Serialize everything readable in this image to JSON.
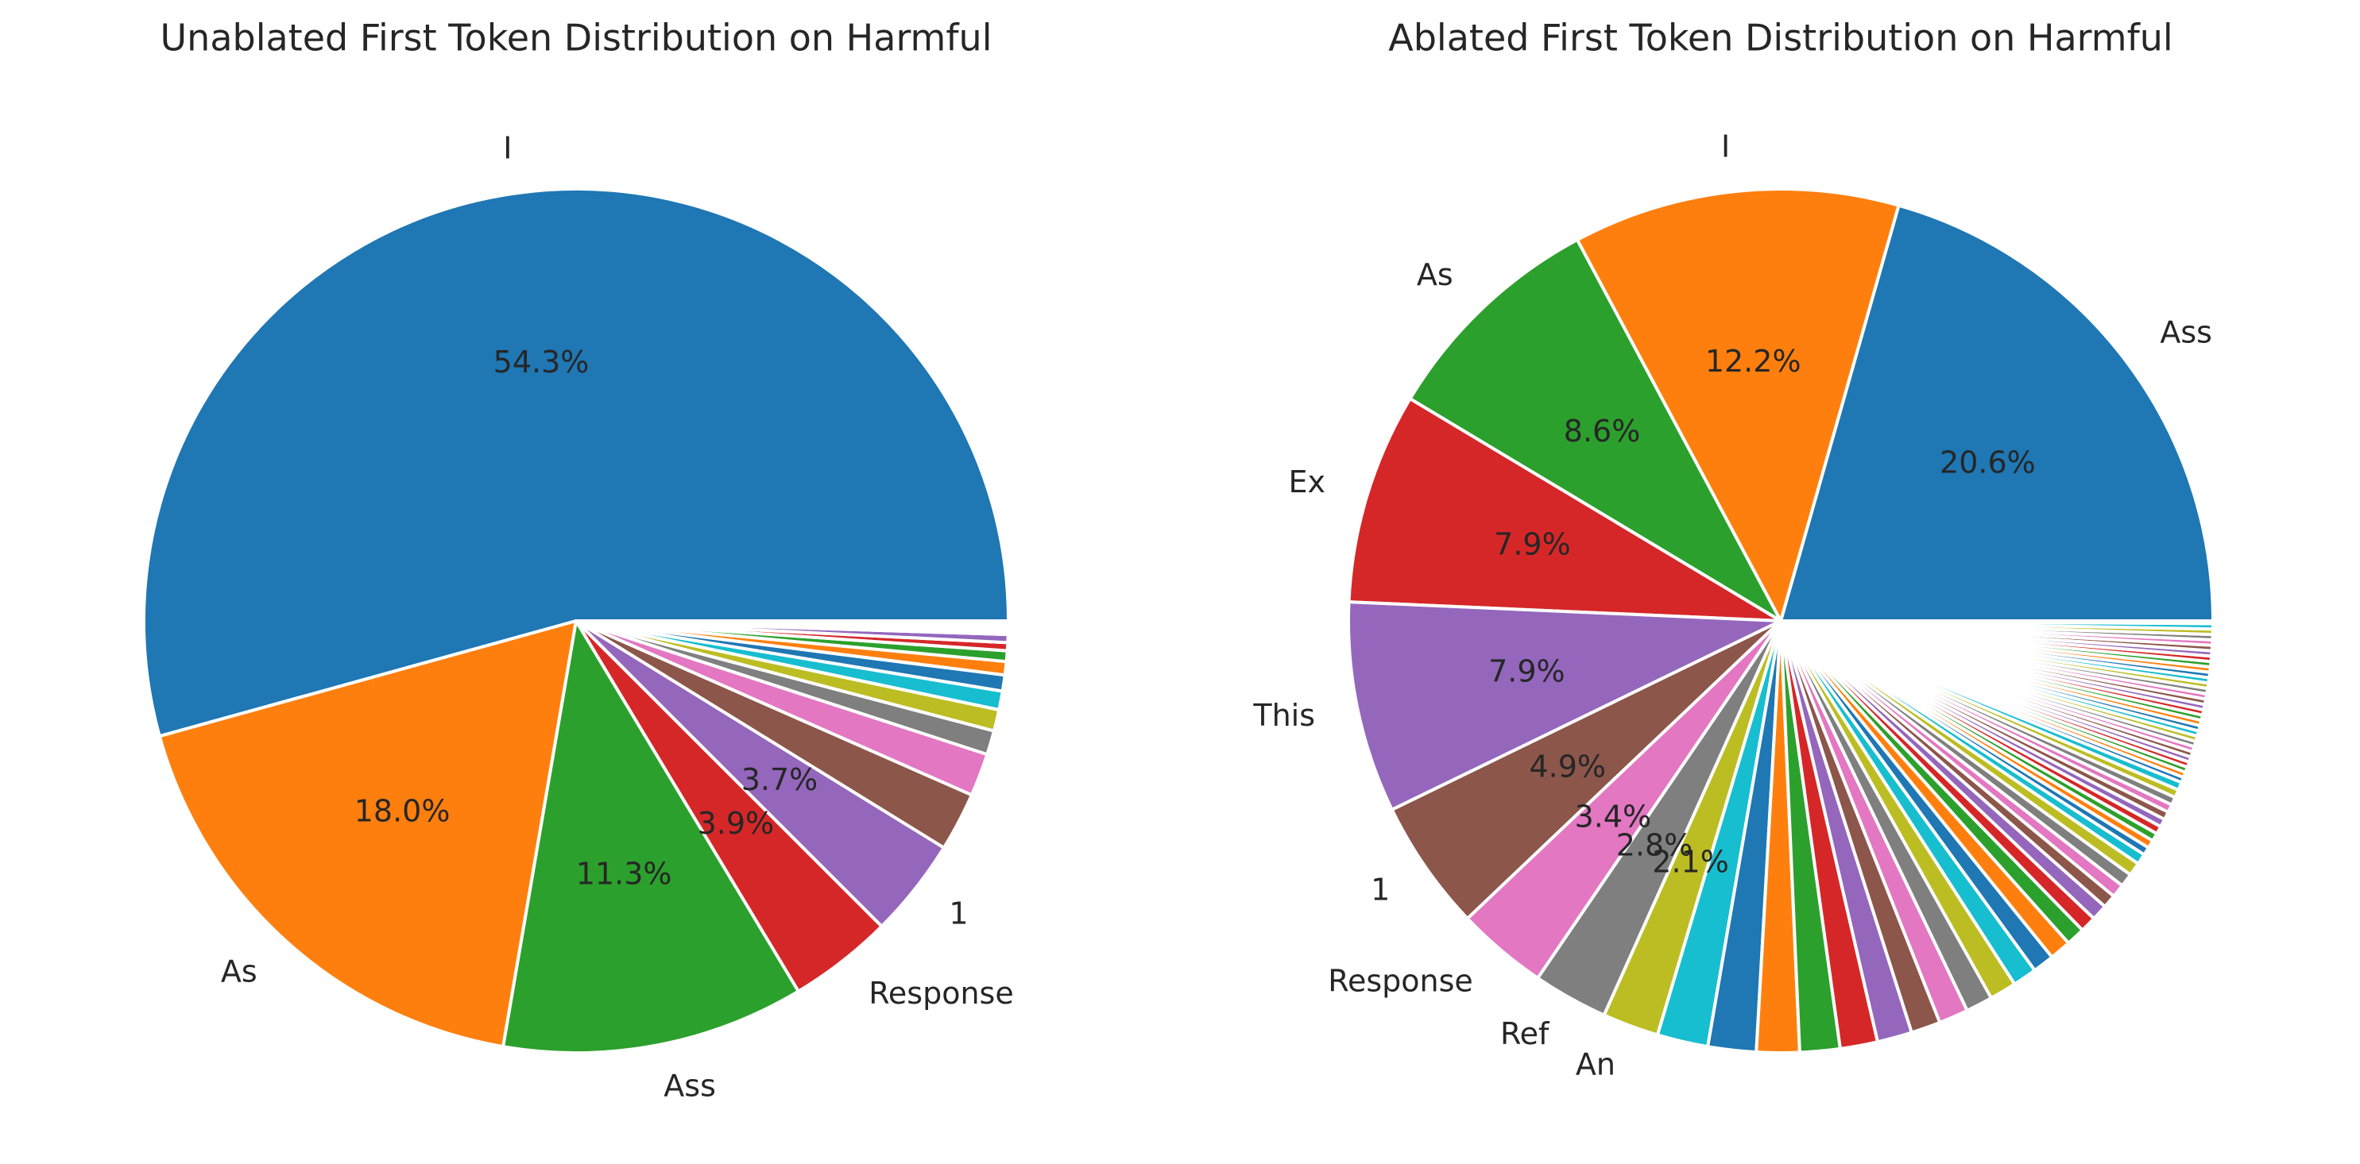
{
  "chart_data": [
    {
      "type": "pie",
      "title": "Unablated First Token Distribution on Harmful",
      "categories": [
        "I",
        "As",
        "Ass",
        "Response",
        "1",
        null,
        null,
        null,
        null,
        null,
        null,
        null,
        null,
        null,
        null,
        null,
        null,
        null,
        null,
        null
      ],
      "values": [
        54.3,
        18.0,
        11.3,
        3.9,
        3.7,
        2.2,
        1.6,
        0.9,
        0.8,
        0.7,
        0.6,
        0.5,
        0.4,
        0.3,
        0.3,
        0.1,
        0.1,
        0.1,
        0.1,
        0.1
      ],
      "value_labels": [
        "54.3%",
        "18.0%",
        "11.3%",
        "3.9%",
        "3.7%",
        null,
        null,
        null,
        null,
        null,
        null,
        null,
        null,
        null,
        null,
        null,
        null,
        null,
        null,
        null
      ],
      "colors": [
        "#1f77b4",
        "#ff7f0e",
        "#2ca02c",
        "#d62728",
        "#9467bd",
        "#8c564b",
        "#e377c2",
        "#7f7f7f",
        "#bcbd22",
        "#17becf"
      ]
    },
    {
      "type": "pie",
      "title": "Ablated First Token Distribution on Harmful",
      "categories": [
        "Ass",
        "I",
        "As",
        "Ex",
        "This",
        "1",
        "Response",
        "Ref",
        "An",
        null,
        null,
        null,
        null,
        null,
        null,
        null,
        null,
        null,
        null,
        null,
        null,
        null,
        null,
        null,
        null,
        null,
        null,
        null,
        null,
        null,
        null,
        null,
        null,
        null,
        null,
        null,
        null,
        null,
        null,
        null,
        null,
        null,
        null,
        null,
        null,
        null,
        null,
        null,
        null,
        null,
        null,
        null,
        null,
        null,
        null,
        null,
        null,
        null,
        null,
        null,
        null,
        null,
        null,
        null,
        null,
        null,
        null,
        null,
        null,
        null,
        null
      ],
      "values": [
        20.6,
        12.2,
        8.6,
        7.9,
        7.9,
        4.9,
        3.4,
        2.8,
        2.1,
        1.9,
        1.8,
        1.6,
        1.5,
        1.4,
        1.3,
        1.1,
        1.1,
        1.0,
        1.0,
        0.9,
        0.8,
        0.8,
        0.7,
        0.6,
        0.6,
        0.5,
        0.5,
        0.5,
        0.5,
        0.4,
        0.3,
        0.3,
        0.3,
        0.3,
        0.3,
        0.3,
        0.3,
        0.3,
        0.3,
        0.3,
        0.2,
        0.2,
        0.2,
        0.2,
        0.2,
        0.2,
        0.2,
        0.2,
        0.2,
        0.2,
        0.2,
        0.2,
        0.2,
        0.2,
        0.2,
        0.2,
        0.2,
        0.2,
        0.2,
        0.2,
        0.2,
        0.2,
        0.2,
        0.2,
        0.2,
        0.2,
        0.2,
        0.2,
        0.2,
        0.2,
        0.1
      ],
      "value_labels": [
        "20.6%",
        "12.2%",
        "8.6%",
        "7.9%",
        "7.9%",
        "4.9%",
        "3.4%",
        "2.8%",
        "2.1%",
        null,
        null,
        null,
        null,
        null,
        null,
        null,
        null,
        null,
        null,
        null,
        null,
        null,
        null,
        null,
        null,
        null,
        null,
        null,
        null,
        null,
        null,
        null,
        null,
        null,
        null,
        null,
        null,
        null,
        null,
        null,
        null,
        null,
        null,
        null,
        null,
        null,
        null,
        null,
        null,
        null,
        null,
        null,
        null,
        null,
        null,
        null,
        null,
        null,
        null,
        null,
        null,
        null,
        null,
        null,
        null,
        null,
        null,
        null,
        null,
        null,
        null
      ],
      "colors": [
        "#1f77b4",
        "#ff7f0e",
        "#2ca02c",
        "#d62728",
        "#9467bd",
        "#8c564b",
        "#e377c2",
        "#7f7f7f",
        "#bcbd22",
        "#17becf"
      ]
    }
  ]
}
